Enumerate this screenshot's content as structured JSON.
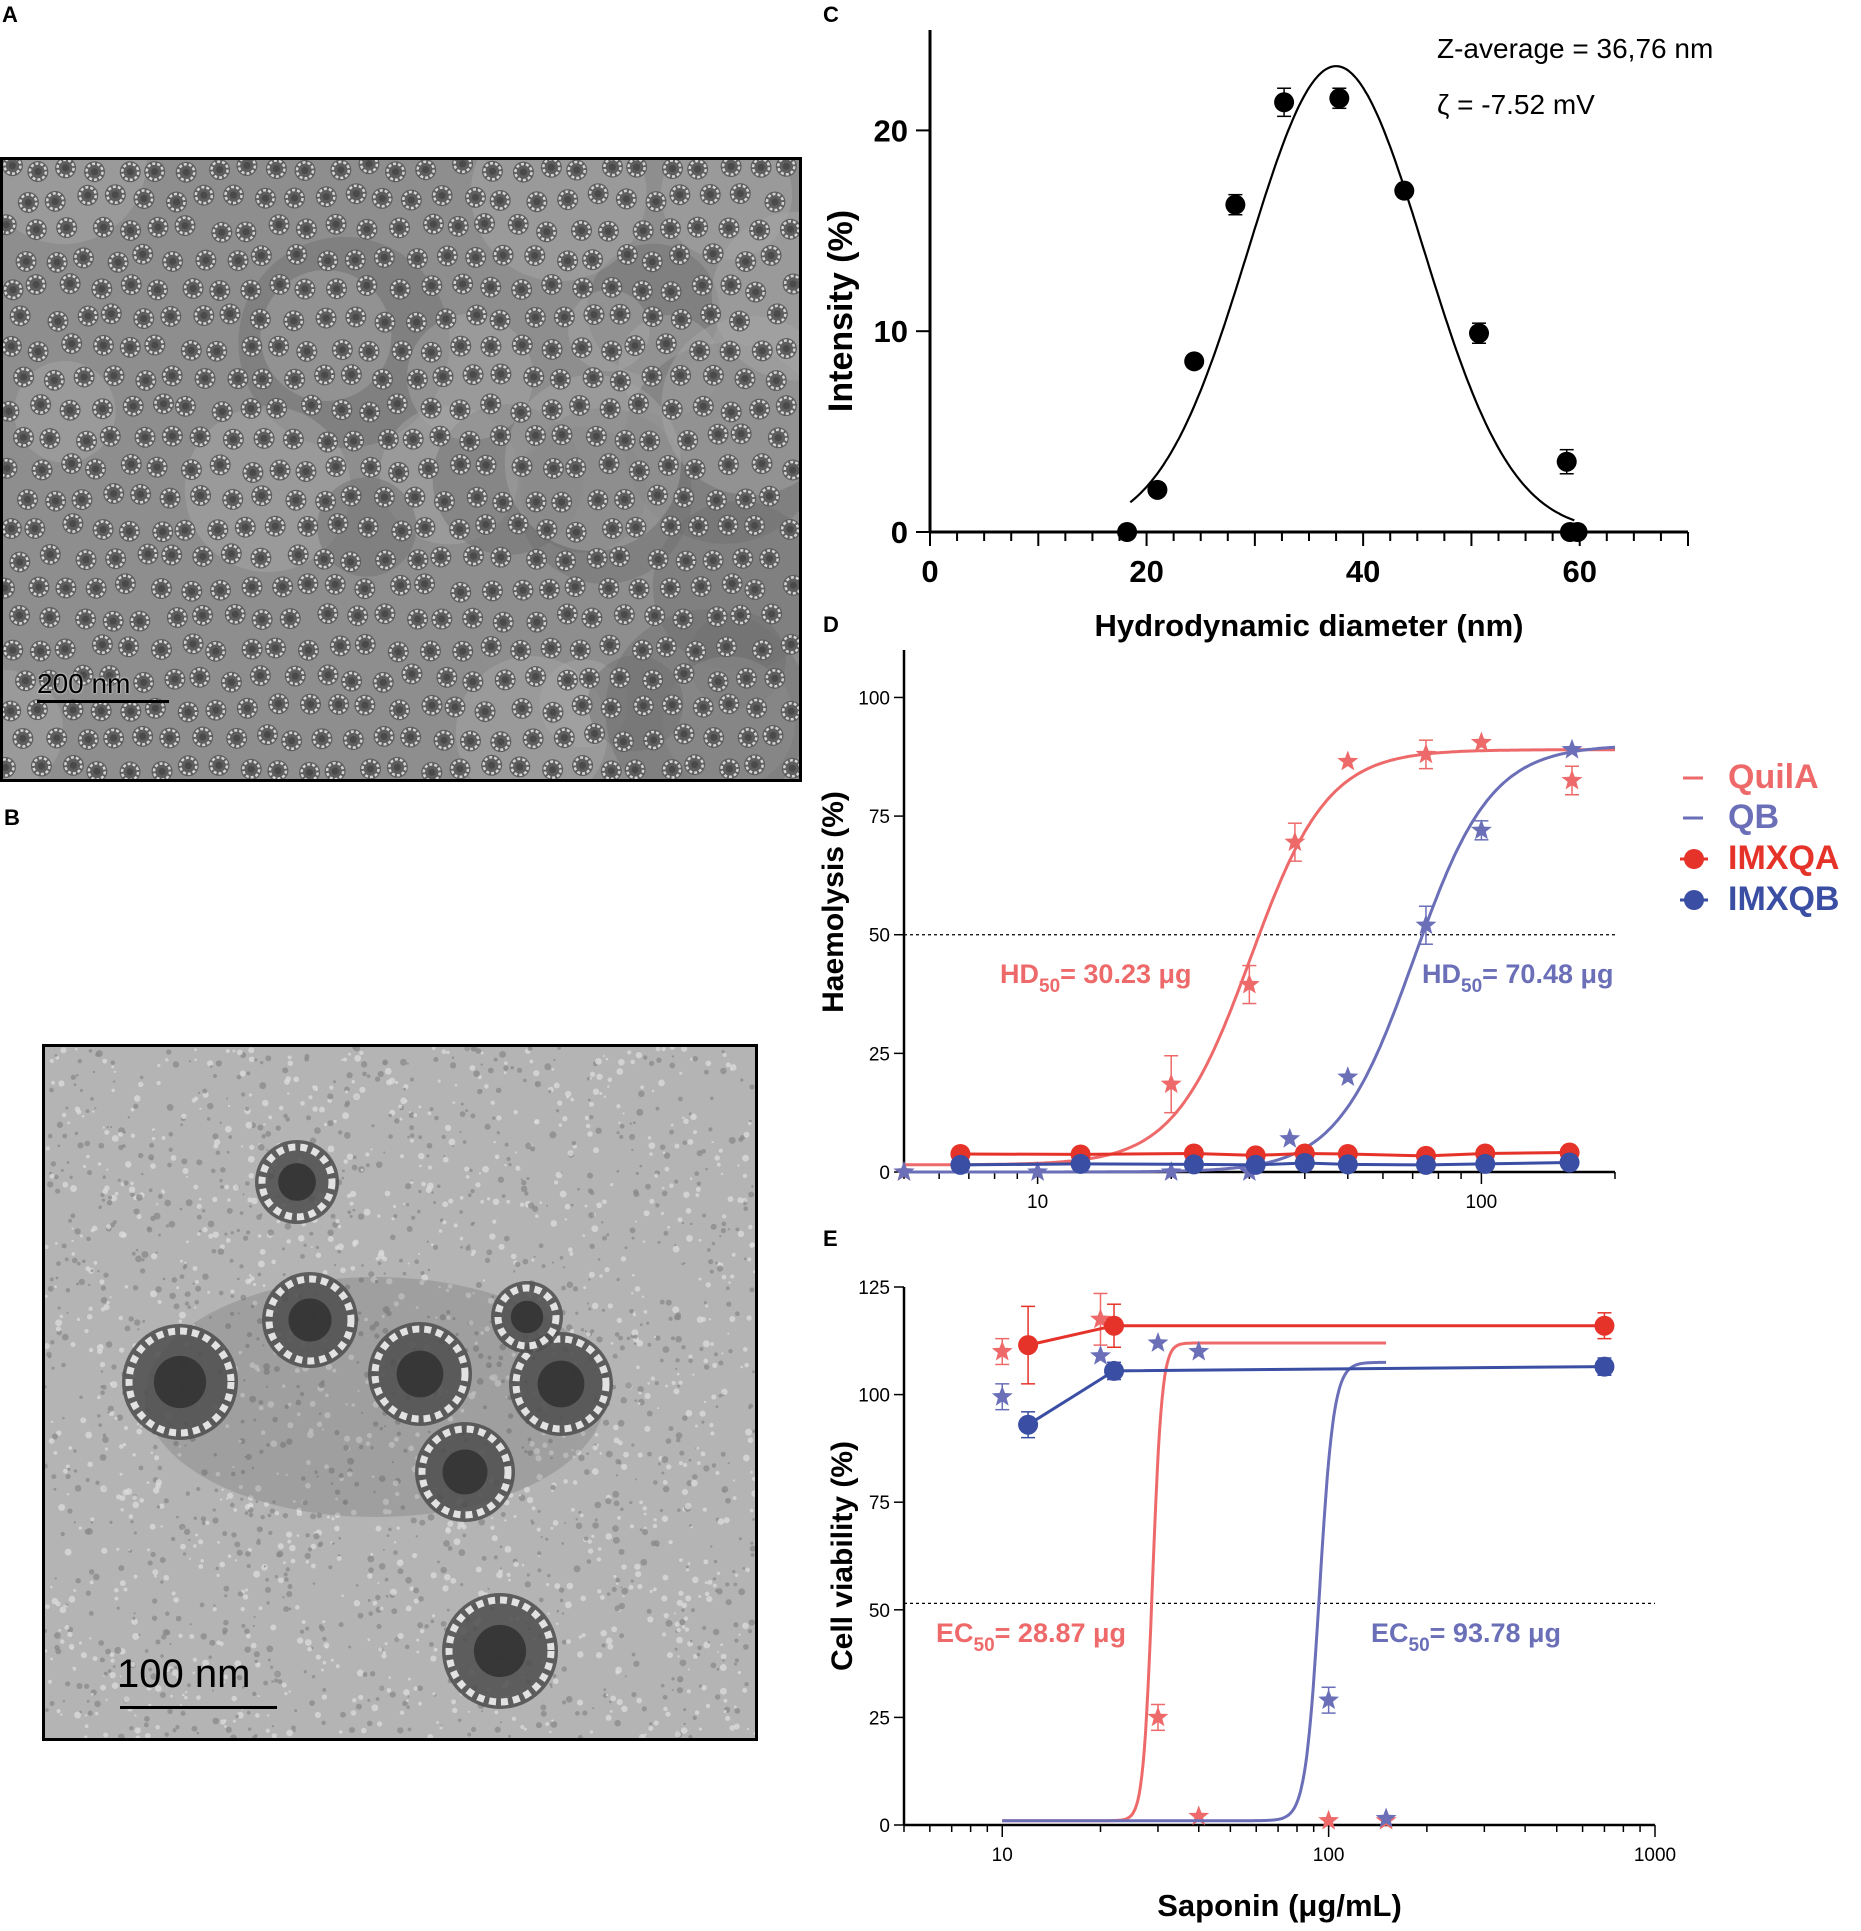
{
  "panels": {
    "a": {
      "letter": "A",
      "scale_label": "200 nm"
    },
    "b": {
      "letter": "B",
      "scale_label": "100 nm"
    },
    "c": {
      "letter": "C"
    },
    "d": {
      "letter": "D"
    },
    "e": {
      "letter": "E"
    }
  },
  "colors": {
    "red": "#e5332a",
    "red_light": "#ee6a6a",
    "blue": "#3a4ea3",
    "blue_light": "#6a6fb8",
    "black": "#000000"
  },
  "legend": {
    "items": [
      {
        "label": "QuilA",
        "marker": "line",
        "color": "#ee6a6a"
      },
      {
        "label": "QB",
        "marker": "line",
        "color": "#6a6fb8"
      },
      {
        "label": "IMXQA",
        "marker": "dot",
        "color": "#e5332a"
      },
      {
        "label": "IMXQB",
        "marker": "dot",
        "color": "#3a4ea3"
      }
    ]
  },
  "chart_data": [
    {
      "id": "C",
      "type": "scatter",
      "xlabel": "Hydrodynamic diameter (nm)",
      "ylabel": "Intensity (%)",
      "xlim": [
        0,
        70
      ],
      "ylim": [
        0,
        25
      ],
      "xticks": [
        0,
        20,
        40,
        60
      ],
      "yticks": [
        0,
        10,
        20
      ],
      "annotations": [
        "Z-average = 36,76 nm",
        "ζ = -7.52 mV"
      ],
      "points": [
        {
          "x": 18.2,
          "y": 0,
          "err": 0
        },
        {
          "x": 21.0,
          "y": 2.1,
          "err": 0
        },
        {
          "x": 24.4,
          "y": 8.5,
          "err": 0
        },
        {
          "x": 28.2,
          "y": 16.3,
          "err": 0.5
        },
        {
          "x": 32.7,
          "y": 21.4,
          "err": 0.7
        },
        {
          "x": 37.8,
          "y": 21.6,
          "err": 0.5
        },
        {
          "x": 43.8,
          "y": 17.0,
          "err": 0
        },
        {
          "x": 50.7,
          "y": 9.9,
          "err": 0.5
        },
        {
          "x": 58.8,
          "y": 3.5,
          "err": 0.6
        },
        {
          "x": 59.1,
          "y": 0,
          "err": 0
        },
        {
          "x": 59.8,
          "y": 0,
          "err": 0
        }
      ],
      "fit": {
        "amplitude": 23.2,
        "mean": 37.5,
        "sd": 8.1,
        "x_range": [
          18.5,
          59.5
        ]
      }
    },
    {
      "id": "D",
      "type": "scatter",
      "xscale": "log",
      "ylabel": "Haemolysis (%)",
      "xlim": [
        5,
        200
      ],
      "ylim": [
        0,
        110
      ],
      "xticks": [
        10,
        100
      ],
      "yticks": [
        0,
        25,
        50,
        75,
        100
      ],
      "reference_y": 50,
      "annotations": [
        {
          "text_main": "HD",
          "text_sub": "50",
          "text_value": "= 30.23 μg",
          "color": "#ee6a6a"
        },
        {
          "text_main": "HD",
          "text_sub": "50",
          "text_value": "= 70.48 μg",
          "color": "#6a6fb8"
        }
      ],
      "series": [
        {
          "name": "QuilA",
          "marker": "star",
          "color": "#ee6a6a",
          "x": [
            5,
            20,
            30,
            38,
            50,
            75,
            100,
            160
          ],
          "y": [
            0,
            18.5,
            39.5,
            69.5,
            86.5,
            88,
            90.5,
            82.5
          ],
          "err": [
            0,
            6,
            4,
            4,
            0,
            3,
            0,
            3
          ],
          "fit": {
            "bottom": 1.5,
            "top": 89,
            "ec50": 30.23,
            "hill": 5.0
          }
        },
        {
          "name": "QB",
          "marker": "star",
          "color": "#6a6fb8",
          "x": [
            5,
            10,
            20,
            30,
            37,
            50,
            75,
            100,
            160
          ],
          "y": [
            0,
            0,
            0,
            0,
            7,
            20,
            52,
            72,
            89
          ],
          "err": [
            0,
            0,
            0,
            0,
            0,
            0,
            4,
            2,
            0
          ],
          "fit": {
            "bottom": 0,
            "top": 90,
            "ec50": 70.48,
            "hill": 5.0
          }
        },
        {
          "name": "IMXQA",
          "marker": "dot",
          "color": "#e5332a",
          "x": [
            6.7,
            12.5,
            22.5,
            31,
            40,
            50,
            75,
            102,
            158
          ],
          "y": [
            3.8,
            3.7,
            3.9,
            3.5,
            3.9,
            3.8,
            3.4,
            3.9,
            4.1
          ]
        },
        {
          "name": "IMXQB",
          "marker": "dot",
          "color": "#3a4ea3",
          "x": [
            6.7,
            12.5,
            22.5,
            31,
            40,
            50,
            75,
            102,
            158
          ],
          "y": [
            1.5,
            1.7,
            1.6,
            1.5,
            1.9,
            1.6,
            1.5,
            1.7,
            2.0
          ]
        }
      ]
    },
    {
      "id": "E",
      "type": "scatter",
      "xscale": "log",
      "xlabel": "Saponin (μg/mL)",
      "ylabel": "Cell viability (%)",
      "xlim": [
        5,
        1000
      ],
      "ylim": [
        0,
        125
      ],
      "xticks": [
        10,
        100,
        1000
      ],
      "yticks": [
        0,
        25,
        50,
        75,
        100,
        125
      ],
      "reference_y": 51.5,
      "annotations": [
        {
          "text_main": "EC",
          "text_sub": "50",
          "text_value": "= 28.87 μg",
          "color": "#ee6a6a"
        },
        {
          "text_main": "EC",
          "text_sub": "50",
          "text_value": "= 93.78 μg",
          "color": "#6a6fb8"
        }
      ],
      "series": [
        {
          "name": "QuilA",
          "marker": "star",
          "color": "#ee6a6a",
          "x": [
            10,
            20,
            30,
            40,
            100,
            150
          ],
          "y": [
            110,
            117.5,
            25,
            2,
            1,
            1
          ],
          "err": [
            3,
            6,
            3,
            0,
            0,
            0
          ],
          "fit": {
            "bottom": 1,
            "top": 112,
            "ec50": 28.87,
            "hill": 30,
            "x_range": [
              10,
              150
            ]
          }
        },
        {
          "name": "QB",
          "marker": "star",
          "color": "#6a6fb8",
          "x": [
            10,
            20,
            30,
            40,
            100,
            150
          ],
          "y": [
            99.5,
            109,
            112,
            110,
            29,
            1.5
          ],
          "err": [
            3,
            0,
            0,
            0,
            3,
            0
          ],
          "fit": {
            "bottom": 1,
            "top": 107.5,
            "ec50": 93.78,
            "hill": 20,
            "x_range": [
              10,
              150
            ]
          }
        },
        {
          "name": "IMXQA",
          "marker": "dot",
          "color": "#e5332a",
          "x": [
            12,
            22,
            700
          ],
          "y": [
            111.5,
            116,
            116
          ],
          "err": [
            9,
            5,
            3
          ]
        },
        {
          "name": "IMXQB",
          "marker": "dot",
          "color": "#3a4ea3",
          "x": [
            12,
            22,
            700
          ],
          "y": [
            93,
            105.5,
            106.5
          ],
          "err": [
            3,
            2,
            2
          ]
        }
      ]
    }
  ]
}
